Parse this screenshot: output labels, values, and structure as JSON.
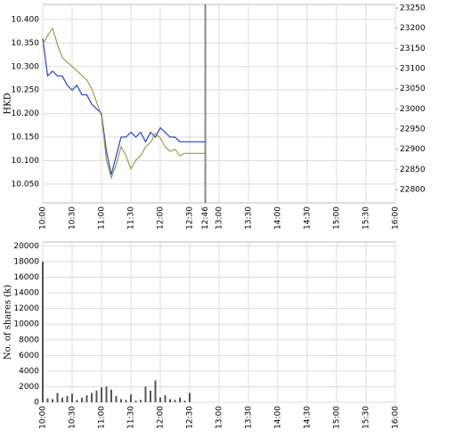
{
  "chart_data": [
    {
      "type": "line",
      "y_label": "HKD",
      "x": [
        "10:00",
        "10:05",
        "10:10",
        "10:15",
        "10:20",
        "10:25",
        "10:30",
        "10:35",
        "10:40",
        "10:45",
        "10:50",
        "10:55",
        "11:00",
        "11:05",
        "11:10",
        "11:15",
        "11:20",
        "11:25",
        "11:30",
        "11:35",
        "11:40",
        "11:45",
        "11:50",
        "11:55",
        "12:00",
        "12:05",
        "12:10",
        "12:15",
        "12:20",
        "12:25",
        "12:30",
        "12:35",
        "12:40",
        "12:45",
        "12:46"
      ],
      "series": [
        {
          "color": "#2244cc",
          "values": [
            10.36,
            10.28,
            10.29,
            10.28,
            10.28,
            10.26,
            10.25,
            10.26,
            10.24,
            10.24,
            10.22,
            10.21,
            10.2,
            10.12,
            10.07,
            10.11,
            10.15,
            10.15,
            10.16,
            10.15,
            10.16,
            10.14,
            10.16,
            10.15,
            10.17,
            10.16,
            10.15,
            10.15,
            10.14,
            10.14,
            10.14,
            10.14,
            10.14,
            10.14,
            10.14
          ]
        },
        {
          "color": "#a39a4a",
          "axis": "y2",
          "values": [
            23160,
            23182,
            23200,
            23160,
            23127,
            23116,
            23105,
            23094,
            23083,
            23072,
            23050,
            23017,
            22983,
            22873,
            22829,
            22862,
            22906,
            22884,
            22851,
            22873,
            22884,
            22906,
            22917,
            22939,
            22928,
            22906,
            22895,
            22900,
            22884,
            22890,
            22890,
            22890,
            22890,
            22890,
            22890
          ]
        }
      ],
      "xlim": [
        "10:00",
        "16:00"
      ],
      "xticks": [
        "10:00",
        "10:30",
        "11:00",
        "11:30",
        "12:00",
        "12:30",
        "12:46",
        "13:00",
        "13:30",
        "14:00",
        "14:30",
        "15:00",
        "15:30",
        "16:00"
      ],
      "now_line": "12:46",
      "ylim": [
        10.01,
        10.432
      ],
      "yticks": [
        {
          "value": 10.05,
          "label": "10.050"
        },
        {
          "value": 10.1,
          "label": "10.100"
        },
        {
          "value": 10.15,
          "label": "10.150"
        },
        {
          "value": 10.2,
          "label": "10.200"
        },
        {
          "value": 10.25,
          "label": "10.250"
        },
        {
          "value": 10.3,
          "label": "10.300"
        },
        {
          "value": 10.35,
          "label": "10.350"
        },
        {
          "value": 10.4,
          "label": "10.400"
        }
      ],
      "y2lim": [
        22767,
        23259
      ],
      "y2ticks": [
        22800,
        22850,
        22900,
        22950,
        23000,
        23050,
        23100,
        23150,
        23200,
        23250
      ],
      "grid": true
    },
    {
      "type": "bar",
      "y_label": "No. of shares (k)",
      "x": [
        "10:00",
        "10:05",
        "10:10",
        "10:15",
        "10:20",
        "10:25",
        "10:30",
        "10:35",
        "10:40",
        "10:45",
        "10:50",
        "10:55",
        "11:00",
        "11:05",
        "11:10",
        "11:15",
        "11:20",
        "11:25",
        "11:30",
        "11:35",
        "11:40",
        "11:45",
        "11:50",
        "11:55",
        "12:00",
        "12:05",
        "12:10",
        "12:15",
        "12:20",
        "12:25",
        "12:30"
      ],
      "values": [
        18000,
        500,
        400,
        1200,
        600,
        800,
        1100,
        300,
        600,
        900,
        1200,
        1500,
        1900,
        2000,
        1600,
        800,
        400,
        300,
        1000,
        200,
        300,
        2000,
        1500,
        2800,
        600,
        900,
        400,
        300,
        600,
        200,
        1200
      ],
      "color": "#555555",
      "xlim": [
        "10:00",
        "16:00"
      ],
      "xticks": [
        "10:00",
        "10:30",
        "11:00",
        "11:30",
        "12:00",
        "12:30",
        "13:00",
        "13:30",
        "14:00",
        "14:30",
        "15:00",
        "15:30",
        "16:00"
      ],
      "ylim": [
        0,
        20500
      ],
      "yticks": [
        0,
        2000,
        4000,
        6000,
        8000,
        10000,
        12000,
        14000,
        16000,
        18000,
        20000
      ],
      "grid": true
    }
  ]
}
